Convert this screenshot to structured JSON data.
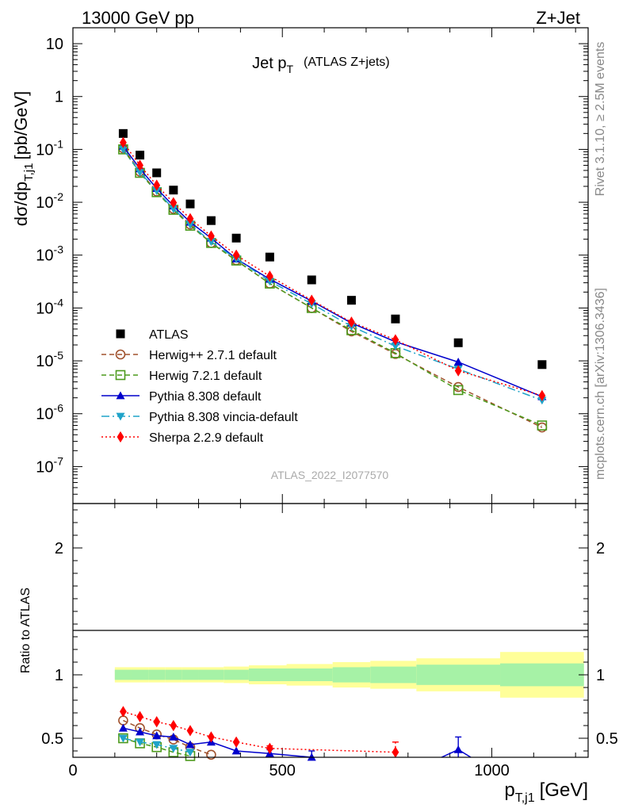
{
  "header": {
    "energy_label": "13000 GeV pp",
    "process_label": "Z+Jet"
  },
  "side_labels": {
    "rivet": "Rivet 3.1.10, ≥ 2.5M events",
    "mcplots": "mcplots.cern.ch [arXiv:1306.3436]"
  },
  "chart_data": [
    {
      "type": "scatter",
      "title": "Jet p_T (ATLAS Z+jets)",
      "title_main": "Jet p",
      "title_sub": "T",
      "title_suffix": "(ATLAS Z+jets)",
      "analysis_id": "ATLAS_2022_I2077570",
      "ylabel": "dσ/dp_T,j1 [pb/GeV]",
      "ylabel_main": "dσ/dp",
      "ylabel_sub": "T,j1",
      "ylabel_suffix": "[pb/GeV]",
      "yscale": "log",
      "ylim": [
        2e-08,
        20
      ],
      "xlim": [
        0,
        1230
      ],
      "legend_position": "bottom-left",
      "yticks": [
        "10",
        "1",
        "10^-1",
        "10^-2",
        "10^-3",
        "10^-4",
        "10^-5",
        "10^-6",
        "10^-7"
      ],
      "series": [
        {
          "name": "ATLAS",
          "color": "#000000",
          "marker": "square-filled",
          "line": "none",
          "x": [
            120,
            160,
            200,
            240,
            280,
            330,
            390,
            470,
            570,
            665,
            770,
            920,
            1120
          ],
          "y": [
            0.2,
            0.078,
            0.036,
            0.017,
            0.0093,
            0.0045,
            0.0021,
            0.00092,
            0.00034,
            0.00014,
            6.2e-05,
            2.2e-05,
            8.5e-06
          ]
        },
        {
          "name": "Herwig++ 2.7.1 default",
          "color": "#a0522d",
          "marker": "circle-open",
          "line": "dashed",
          "x": [
            120,
            160,
            200,
            240,
            280,
            330,
            390,
            470,
            570,
            665,
            770,
            920,
            1120
          ],
          "y": [
            0.105,
            0.038,
            0.016,
            0.0075,
            0.0038,
            0.0017,
            0.0008,
            0.00029,
            0.0001,
            3.6e-05,
            1.35e-05,
            3.2e-06,
            5.5e-07
          ]
        },
        {
          "name": "Herwig 7.2.1 default",
          "color": "#4c9a1c",
          "marker": "square-open",
          "line": "dashed",
          "x": [
            120,
            160,
            200,
            240,
            280,
            330,
            390,
            470,
            570,
            665,
            770,
            920,
            1120
          ],
          "y": [
            0.1,
            0.036,
            0.0155,
            0.0072,
            0.0036,
            0.0017,
            0.00079,
            0.00029,
            0.0001,
            3.8e-05,
            1.4e-05,
            2.8e-06,
            6e-07
          ]
        },
        {
          "name": "Pythia 8.308 default",
          "color": "#0000cc",
          "marker": "triangle-up",
          "line": "solid",
          "x": [
            120,
            160,
            200,
            240,
            280,
            330,
            390,
            470,
            570,
            665,
            770,
            920,
            1120
          ],
          "y": [
            0.115,
            0.043,
            0.0183,
            0.0085,
            0.0042,
            0.0021,
            0.00085,
            0.00035,
            0.000135,
            5.2e-05,
            2.3e-05,
            9.5e-06,
            2.1e-06
          ]
        },
        {
          "name": "Pythia 8.308 vincia-default",
          "color": "#1fa3c9",
          "marker": "triangle-down",
          "line": "dashdot",
          "x": [
            120,
            160,
            200,
            240,
            280,
            330,
            390,
            470,
            570,
            665,
            770,
            920,
            1120
          ],
          "y": [
            0.1,
            0.037,
            0.0165,
            0.0075,
            0.0038,
            0.0018,
            0.00085,
            0.00032,
            0.00012,
            4.5e-05,
            1.9e-05,
            7e-06,
            1.8e-06
          ]
        },
        {
          "name": "Sherpa 2.2.9 default",
          "color": "#ff0000",
          "marker": "diamond",
          "line": "dotted",
          "x": [
            120,
            160,
            200,
            240,
            280,
            330,
            390,
            470,
            570,
            665,
            770,
            920,
            1120
          ],
          "y": [
            0.135,
            0.05,
            0.021,
            0.0098,
            0.0049,
            0.0023,
            0.001,
            0.0004,
            0.00014,
            5.4e-05,
            2.5e-05,
            6.5e-06,
            2.2e-06
          ]
        }
      ]
    },
    {
      "type": "line",
      "ylabel": "Ratio to ATLAS",
      "xlabel": "p_T,j1 [GeV]",
      "xlabel_main": "p",
      "xlabel_sub": "T,j1",
      "xlabel_suffix": "[GeV]",
      "ylim": [
        0.35,
        2.35
      ],
      "xlim": [
        0,
        1230
      ],
      "xticks": [
        0,
        500,
        1000
      ],
      "yticks": [
        0.5,
        1,
        2
      ],
      "uncertainty_bands": {
        "edges": [
          100,
          140,
          180,
          220,
          260,
          300,
          360,
          420,
          510,
          620,
          710,
          820,
          1020,
          1220
        ],
        "inner_half_width": [
          0.04,
          0.04,
          0.04,
          0.04,
          0.04,
          0.04,
          0.04,
          0.05,
          0.05,
          0.06,
          0.065,
          0.08,
          0.09
        ],
        "outer_half_width": [
          0.06,
          0.06,
          0.06,
          0.06,
          0.06,
          0.06,
          0.065,
          0.075,
          0.085,
          0.1,
          0.11,
          0.13,
          0.18
        ],
        "inner_color": "#a6f2a6",
        "outer_color": "#ffff99"
      },
      "series": [
        {
          "name": "Herwig++ 2.7.1 default",
          "color": "#a0522d",
          "marker": "circle-open",
          "line": "dashed",
          "x": [
            120,
            160,
            200,
            240,
            280,
            330
          ],
          "y": [
            0.64,
            0.58,
            0.53,
            0.49,
            0.43,
            0.37
          ]
        },
        {
          "name": "Herwig 7.2.1 default",
          "color": "#4c9a1c",
          "marker": "square-open",
          "line": "dashed",
          "x": [
            120,
            160,
            200,
            240,
            280
          ],
          "y": [
            0.5,
            0.46,
            0.43,
            0.39,
            0.36
          ]
        },
        {
          "name": "Pythia 8.308 default",
          "color": "#0000cc",
          "marker": "triangle-up",
          "line": "solid",
          "x": [
            120,
            160,
            200,
            240,
            280,
            330,
            390,
            470,
            570,
            920
          ],
          "y": [
            0.58,
            0.55,
            0.52,
            0.51,
            0.45,
            0.47,
            0.4,
            0.38,
            0.35,
            0.41
          ],
          "yerr": [
            0,
            0,
            0,
            0,
            0,
            0,
            0,
            0.03,
            0.05,
            0.1
          ],
          "segments": [
            [
              0,
              8
            ],
            [
              9,
              9
            ]
          ],
          "extension": [
            [
              880,
              0.35
            ],
            [
              920,
              0.41
            ],
            [
              950,
              0.35
            ]
          ]
        },
        {
          "name": "Pythia 8.308 vincia-default",
          "color": "#1fa3c9",
          "marker": "triangle-down",
          "line": "dashdot",
          "x": [
            120,
            160,
            200,
            240,
            280
          ],
          "y": [
            0.5,
            0.47,
            0.45,
            0.42,
            0.39
          ]
        },
        {
          "name": "Sherpa 2.2.9 default",
          "color": "#ff0000",
          "marker": "diamond",
          "line": "dotted",
          "x": [
            120,
            160,
            200,
            240,
            280,
            330,
            390,
            470,
            770
          ],
          "y": [
            0.71,
            0.67,
            0.63,
            0.6,
            0.56,
            0.51,
            0.47,
            0.42,
            0.39
          ],
          "yerr": [
            0,
            0,
            0,
            0,
            0,
            0,
            0,
            0.02,
            0.08
          ]
        }
      ]
    }
  ]
}
